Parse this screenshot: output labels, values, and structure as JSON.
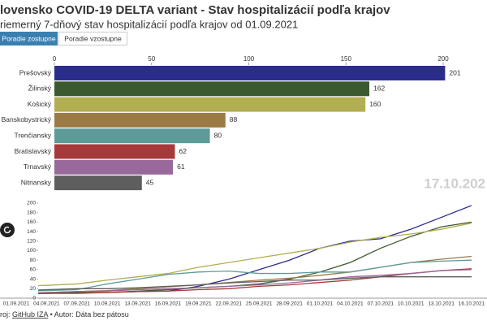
{
  "header": {
    "title": "lovensko COVID-19 DELTA variant - Stav hospitalizácií podľa krajov",
    "subtitle": "riemerný 7-dňový stav hospitalizácií podľa krajov od 01.09.2021"
  },
  "buttons": [
    "Poradie zostupne",
    "Poradie vzostupne"
  ],
  "chart_data": [
    {
      "type": "bar",
      "orientation": "horizontal",
      "categories": [
        "Prešovský",
        "Žilinský",
        "Košický",
        "Banskobystrický",
        "Trenčiansky",
        "Bratislavský",
        "Trnavský",
        "Nitriansky"
      ],
      "values": [
        201,
        162,
        160,
        88,
        80,
        62,
        61,
        45
      ],
      "colors": [
        "#2b2d8c",
        "#3b5a30",
        "#b2ae52",
        "#9c7a46",
        "#5d9b98",
        "#a63a3b",
        "#98699a",
        "#5e5e5e"
      ],
      "xlim": [
        0,
        200
      ],
      "xticks": [
        0,
        50,
        100,
        150,
        200
      ]
    },
    {
      "type": "line",
      "x": [
        "01.09.2021",
        "04.09.2021",
        "07.09.2021",
        "10.09.2021",
        "13.09.2021",
        "16.09.2021",
        "19.09.2021",
        "22.09.2021",
        "25.09.2021",
        "28.09.2021",
        "01.10.2021",
        "04.10.2021",
        "07.10.2021",
        "10.10.2021",
        "13.10.2021",
        "16.10.2021"
      ],
      "series": [
        {
          "name": "Prešovský",
          "color": "#2b2d8c",
          "values": [
            10,
            10,
            12,
            12,
            14,
            15,
            25,
            40,
            60,
            80,
            105,
            120,
            125,
            145,
            170,
            195
          ]
        },
        {
          "name": "Žilinský",
          "color": "#3b5a30",
          "values": [
            10,
            10,
            12,
            12,
            15,
            18,
            22,
            25,
            30,
            40,
            55,
            75,
            105,
            130,
            150,
            160
          ]
        },
        {
          "name": "Košický",
          "color": "#b2ae52",
          "values": [
            25,
            27,
            30,
            38,
            45,
            52,
            65,
            75,
            85,
            95,
            105,
            118,
            128,
            135,
            145,
            158
          ]
        },
        {
          "name": "Banskobystrický",
          "color": "#9c7a46",
          "values": [
            10,
            12,
            14,
            16,
            20,
            24,
            28,
            33,
            38,
            42,
            48,
            55,
            65,
            75,
            82,
            88
          ]
        },
        {
          "name": "Trenčiansky",
          "color": "#5d9b98",
          "values": [
            15,
            16,
            18,
            30,
            40,
            50,
            55,
            57,
            52,
            52,
            55,
            55,
            65,
            75,
            78,
            80
          ]
        },
        {
          "name": "Bratislavský",
          "color": "#a63a3b",
          "values": [
            8,
            10,
            10,
            12,
            14,
            15,
            18,
            20,
            25,
            28,
            33,
            38,
            45,
            52,
            58,
            62
          ]
        },
        {
          "name": "Trnavský",
          "color": "#98699a",
          "values": [
            10,
            12,
            14,
            15,
            18,
            20,
            22,
            25,
            28,
            32,
            38,
            45,
            48,
            52,
            58,
            60
          ]
        },
        {
          "name": "Nitriansky",
          "color": "#5e5e5e",
          "values": [
            15,
            18,
            20,
            20,
            22,
            25,
            28,
            32,
            35,
            38,
            38,
            42,
            45,
            45,
            45,
            45
          ]
        }
      ],
      "ylim": [
        0,
        200
      ],
      "yticks": [
        0,
        20,
        40,
        60,
        80,
        100,
        120,
        140,
        160,
        180,
        200
      ]
    }
  ],
  "date_label": "17.10.202",
  "footer": {
    "prefix": "roj:",
    "link": "GitHub IZA",
    "suffix": "• Autor: Dáta bez pátosu"
  }
}
